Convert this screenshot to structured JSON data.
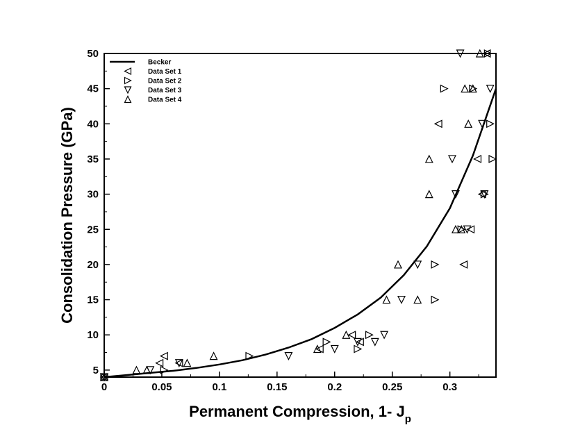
{
  "chart_data": {
    "type": "scatter",
    "title": "",
    "xlabel": "Permanent Compression, 1- J",
    "xlabel_subscript": "p",
    "ylabel": "Consolidation Pressure (GPa)",
    "xlim": [
      0,
      0.34
    ],
    "ylim": [
      4,
      50
    ],
    "xticks": [
      0,
      0.05,
      0.1,
      0.15,
      0.2,
      0.25,
      0.3
    ],
    "xtick_labels": [
      "0",
      "0.05",
      "0.1",
      "0.15",
      "0.2",
      "0.25",
      "0.3"
    ],
    "yticks": [
      5,
      10,
      15,
      20,
      25,
      30,
      35,
      40,
      45,
      50
    ],
    "ytick_labels": [
      "5",
      "10",
      "15",
      "20",
      "25",
      "30",
      "35",
      "40",
      "45",
      "50"
    ],
    "grid": false,
    "legend_position": "top-left",
    "series": [
      {
        "name": "Becker",
        "kind": "line",
        "x": [
          0,
          0.02,
          0.04,
          0.06,
          0.08,
          0.1,
          0.12,
          0.14,
          0.16,
          0.18,
          0.2,
          0.22,
          0.24,
          0.26,
          0.28,
          0.3,
          0.32,
          0.34
        ],
        "y": [
          4.0,
          4.3,
          4.6,
          4.9,
          5.3,
          5.8,
          6.4,
          7.2,
          8.2,
          9.4,
          11.0,
          12.9,
          15.3,
          18.5,
          22.6,
          28.0,
          35.5,
          45.0
        ]
      },
      {
        "name": "Data Set 1",
        "kind": "marker",
        "marker": "triangle-left",
        "x": [
          0,
          0.052,
          0.048,
          0.065,
          0.187,
          0.215,
          0.222,
          0.29,
          0.312,
          0.318,
          0.324,
          0.328,
          0.332,
          0.332
        ],
        "y": [
          4,
          7,
          6,
          6,
          8,
          10,
          9,
          40,
          20,
          25,
          35,
          30,
          50,
          50
        ]
      },
      {
        "name": "Data Set 2",
        "kind": "marker",
        "marker": "triangle-right",
        "x": [
          0,
          0.052,
          0.126,
          0.193,
          0.22,
          0.23,
          0.287,
          0.287,
          0.295,
          0.31,
          0.32,
          0.33,
          0.335,
          0.337,
          0.333
        ],
        "y": [
          4,
          5,
          7,
          9,
          8,
          10,
          20,
          15,
          45,
          25,
          45,
          30,
          40,
          35,
          50
        ]
      },
      {
        "name": "Data Set 3",
        "kind": "marker",
        "marker": "triangle-down",
        "x": [
          0,
          0.04,
          0.065,
          0.16,
          0.2,
          0.22,
          0.235,
          0.243,
          0.258,
          0.272,
          0.302,
          0.305,
          0.309,
          0.315,
          0.328,
          0.33,
          0.335
        ],
        "y": [
          4,
          5,
          6,
          7,
          8,
          9,
          9,
          10,
          15,
          20,
          35,
          30,
          50,
          25,
          40,
          30,
          45
        ]
      },
      {
        "name": "Data Set 4",
        "kind": "marker",
        "marker": "triangle-up",
        "x": [
          0,
          0.028,
          0.037,
          0.072,
          0.095,
          0.185,
          0.21,
          0.245,
          0.255,
          0.272,
          0.282,
          0.282,
          0.305,
          0.31,
          0.316,
          0.313,
          0.32,
          0.326
        ],
        "y": [
          4,
          5,
          5,
          6,
          7,
          8,
          10,
          15,
          20,
          15,
          35,
          30,
          25,
          25,
          40,
          45,
          45,
          50
        ]
      }
    ]
  }
}
